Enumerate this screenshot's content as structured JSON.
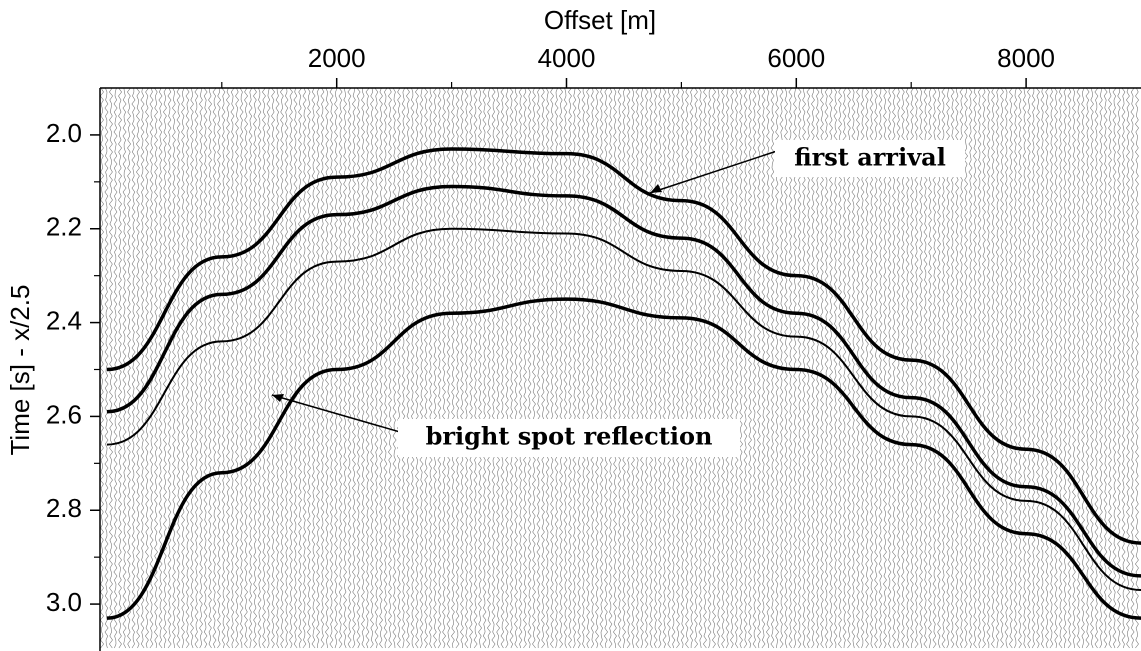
{
  "chart_data": {
    "type": "seismic",
    "x_label": "Offset [m]",
    "y_label": "Time [s] - x/2.5",
    "xlim": [
      -60,
      9000
    ],
    "ylim": [
      3.1,
      1.9
    ],
    "xticks": [
      2000,
      4000,
      6000,
      8000
    ],
    "xminorticks": [
      1000,
      3000,
      5000,
      7000
    ],
    "yticks": [
      {
        "value": 2.0,
        "label": "2.0"
      },
      {
        "value": 2.2,
        "label": "2.2"
      },
      {
        "value": 2.4,
        "label": "2.4"
      },
      {
        "value": 2.6,
        "label": "2.6"
      },
      {
        "value": 2.8,
        "label": "2.8"
      },
      {
        "value": 3.0,
        "label": "3.0"
      }
    ],
    "yminorticks": [
      2.1,
      2.3,
      2.5,
      2.7,
      2.9
    ],
    "x": [
      0,
      1000,
      2000,
      3000,
      4000,
      5000,
      6000,
      7000,
      8000,
      9000
    ],
    "series": [
      {
        "color": "#000000",
        "values": [
          2.5,
          2.26,
          2.09,
          2.03,
          2.04,
          2.14,
          2.3,
          2.48,
          2.67,
          2.87
        ]
      },
      {
        "color": "#000000",
        "values": [
          2.59,
          2.34,
          2.17,
          2.11,
          2.13,
          2.22,
          2.38,
          2.56,
          2.75,
          2.94
        ]
      },
      {
        "color": "#000000",
        "values": [
          2.66,
          2.44,
          2.27,
          2.2,
          2.21,
          2.29,
          2.43,
          2.6,
          2.78,
          2.97
        ]
      },
      {
        "color": "#000000",
        "values": [
          3.03,
          2.72,
          2.5,
          2.38,
          2.35,
          2.39,
          2.5,
          2.66,
          2.85,
          3.03
        ]
      }
    ],
    "annotations": [
      "first arrival",
      "bright spot reflection"
    ]
  }
}
